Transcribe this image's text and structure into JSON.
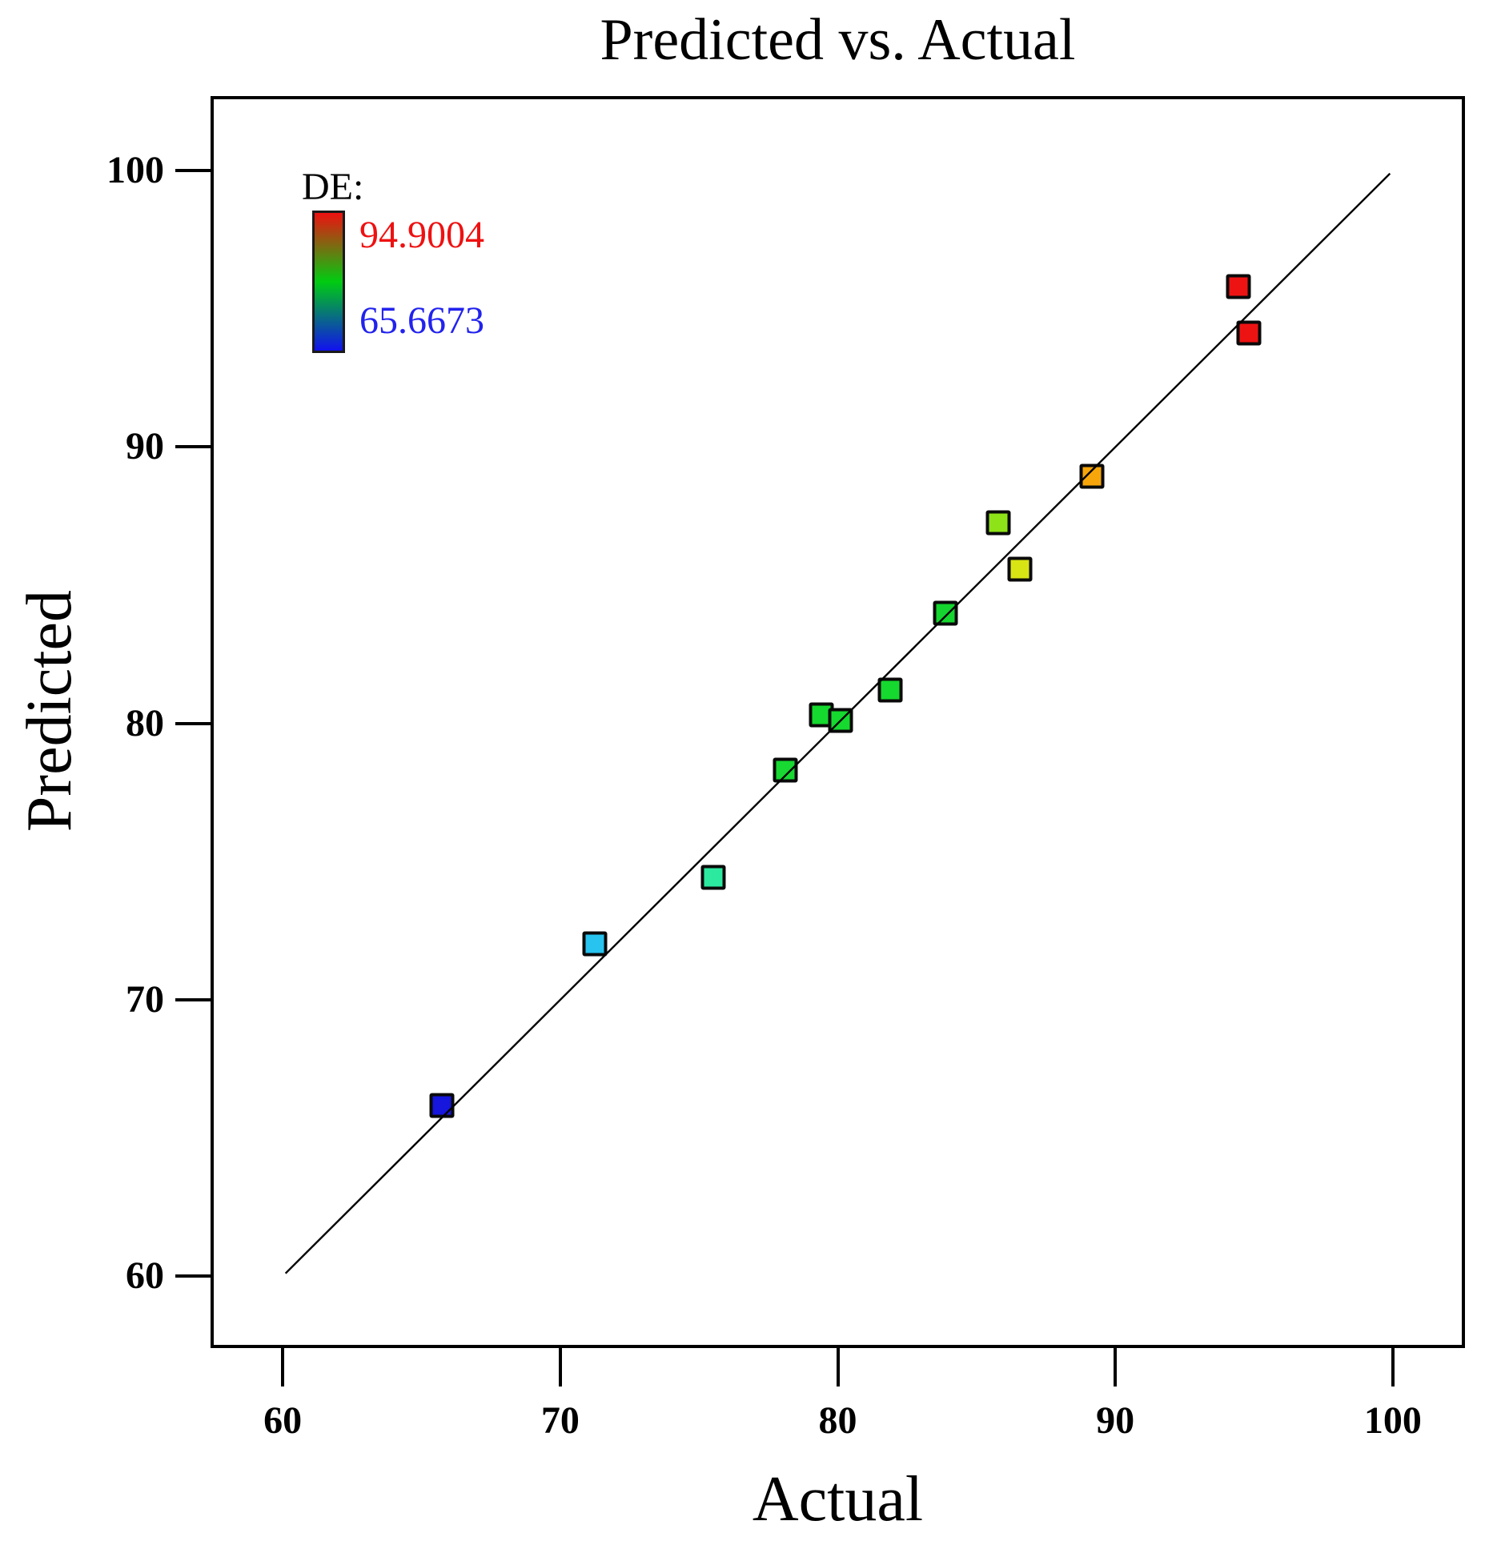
{
  "chart_data": {
    "type": "scatter",
    "title": "Predicted vs. Actual",
    "xlabel": "Actual",
    "ylabel": "Predicted",
    "x_axis": {
      "range": [
        57.4,
        102.6
      ],
      "ticks": [
        60,
        70,
        80,
        90,
        100
      ]
    },
    "y_axis": {
      "range": [
        57.4,
        102.7
      ],
      "ticks": [
        60,
        70,
        80,
        90,
        100
      ]
    },
    "identity_line": {
      "from": [
        60,
        60
      ],
      "to": [
        100,
        100
      ]
    },
    "legend": {
      "title": "DE:",
      "max_label": "94.9004",
      "min_label": "65.6673",
      "max_label_color": "#ee1111",
      "min_label_color": "#2222ee",
      "gradient": [
        "#ee1111",
        "#00cc11",
        "#1111ee"
      ]
    },
    "points": [
      {
        "actual": 65.67,
        "predicted": 66.1,
        "color": "#1616dd"
      },
      {
        "actual": 71.2,
        "predicted": 72.0,
        "color": "#28c3ee"
      },
      {
        "actual": 75.5,
        "predicted": 74.4,
        "color": "#2ce9a0"
      },
      {
        "actual": 78.1,
        "predicted": 78.3,
        "color": "#17d932"
      },
      {
        "actual": 79.4,
        "predicted": 80.3,
        "color": "#15d92e"
      },
      {
        "actual": 80.1,
        "predicted": 80.1,
        "color": "#15d92e"
      },
      {
        "actual": 81.9,
        "predicted": 81.2,
        "color": "#15d92e"
      },
      {
        "actual": 83.9,
        "predicted": 84.0,
        "color": "#14d62e"
      },
      {
        "actual": 85.8,
        "predicted": 87.3,
        "color": "#8ee318"
      },
      {
        "actual": 86.6,
        "predicted": 85.6,
        "color": "#d9e414"
      },
      {
        "actual": 89.2,
        "predicted": 89.0,
        "color": "#f6a60a"
      },
      {
        "actual": 94.5,
        "predicted": 95.9,
        "color": "#ee1313"
      },
      {
        "actual": 94.9,
        "predicted": 94.2,
        "color": "#ee1313"
      }
    ]
  }
}
